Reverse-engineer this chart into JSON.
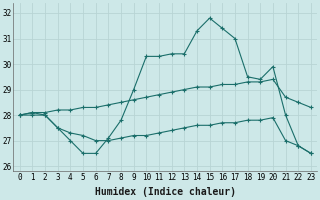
{
  "xlabel": "Humidex (Indice chaleur)",
  "background_color": "#cde8e8",
  "grid_color": "#b8d4d4",
  "line_color": "#1a6e6a",
  "xlim": [
    -0.5,
    23.5
  ],
  "ylim": [
    25.8,
    32.4
  ],
  "xticks": [
    0,
    1,
    2,
    3,
    4,
    5,
    6,
    7,
    8,
    9,
    10,
    11,
    12,
    13,
    14,
    15,
    16,
    17,
    18,
    19,
    20,
    21,
    22,
    23
  ],
  "yticks": [
    26,
    27,
    28,
    29,
    30,
    31,
    32
  ],
  "series1_y": [
    28.0,
    28.1,
    28.0,
    27.5,
    27.0,
    26.5,
    26.5,
    27.1,
    27.8,
    29.0,
    30.3,
    30.3,
    30.4,
    30.4,
    31.3,
    31.8,
    31.4,
    31.0,
    29.5,
    29.4,
    29.9,
    28.0,
    26.8,
    26.5
  ],
  "series2_y": [
    28.0,
    28.0,
    28.0,
    27.5,
    27.3,
    27.2,
    27.0,
    27.0,
    27.1,
    27.2,
    27.2,
    27.3,
    27.4,
    27.5,
    27.6,
    27.6,
    27.7,
    27.7,
    27.8,
    27.8,
    27.9,
    27.0,
    26.8,
    26.5
  ],
  "series3_y": [
    28.0,
    28.1,
    28.1,
    28.2,
    28.2,
    28.3,
    28.3,
    28.4,
    28.5,
    28.6,
    28.7,
    28.8,
    28.9,
    29.0,
    29.1,
    29.1,
    29.2,
    29.2,
    29.3,
    29.3,
    29.4,
    28.7,
    28.5,
    28.3
  ],
  "label_fontsize": 7,
  "tick_fontsize": 5.5
}
